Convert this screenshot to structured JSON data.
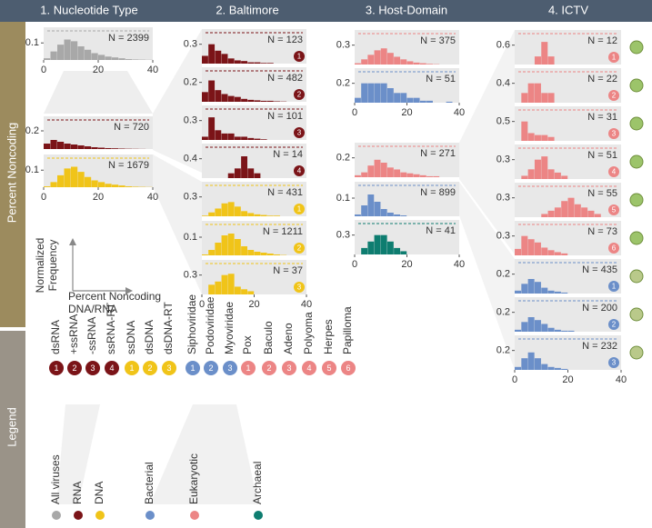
{
  "header": {
    "titles": [
      "1. Nucleotide Type",
      "2. Baltimore",
      "3. Host-Domain",
      "4. ICTV"
    ]
  },
  "side_labels": [
    "Percent Noncoding",
    "Legend"
  ],
  "axes_note": {
    "y": [
      "Normalized",
      "Frequency"
    ],
    "x": [
      "Percent Noncoding",
      "DNA/RNA"
    ]
  },
  "histogram_bins": [
    0,
    2.5,
    5,
    7.5,
    10,
    12.5,
    15,
    17.5,
    20,
    22.5,
    25,
    27.5,
    30,
    32.5,
    35,
    37.5,
    40
  ],
  "xlim": [
    0,
    40
  ],
  "xticks": [
    0,
    20,
    40
  ],
  "panels": [
    {
      "n_label": "N = 2399",
      "color": "#a8a8a8",
      "ylim": [
        0,
        0.16
      ],
      "ytick": 0.1,
      "xaxis": true,
      "values": [
        0.01,
        0.05,
        0.09,
        0.12,
        0.11,
        0.08,
        0.06,
        0.04,
        0.03,
        0.02,
        0.015,
        0.01,
        0.005,
        0.003,
        0.002,
        0.001
      ]
    },
    {
      "n_label": "N = 720",
      "color": "#7b1418",
      "ylim": [
        0,
        0.3
      ],
      "ytick": 0.2,
      "xaxis": false,
      "values": [
        0.06,
        0.1,
        0.08,
        0.06,
        0.05,
        0.04,
        0.03,
        0.02,
        0.015,
        0.01,
        0.008,
        0.005,
        0.003,
        0.002,
        0.001,
        0
      ]
    },
    {
      "n_label": "N = 1679",
      "color": "#f0c419",
      "ylim": [
        0,
        0.16
      ],
      "ytick": 0.1,
      "xaxis": true,
      "values": [
        0.005,
        0.03,
        0.07,
        0.11,
        0.12,
        0.09,
        0.06,
        0.04,
        0.03,
        0.02,
        0.015,
        0.01,
        0.005,
        0.003,
        0.002,
        0.001
      ]
    },
    {
      "n_label": "N = 123",
      "badge": "1",
      "color": "#7b1418",
      "ylim": [
        0,
        0.45
      ],
      "ytick": 0.3,
      "xaxis": false,
      "values": [
        0.12,
        0.3,
        0.2,
        0.15,
        0.08,
        0.05,
        0.04,
        0.02,
        0.02,
        0.01,
        0.01,
        0,
        0,
        0,
        0,
        0
      ]
    },
    {
      "n_label": "N = 482",
      "badge": "2",
      "color": "#7b1418",
      "ylim": [
        0,
        0.3
      ],
      "ytick": 0.2,
      "xaxis": false,
      "values": [
        0.1,
        0.22,
        0.12,
        0.08,
        0.06,
        0.05,
        0.03,
        0.02,
        0.015,
        0.01,
        0.01,
        0.005,
        0.003,
        0,
        0,
        0
      ]
    },
    {
      "n_label": "N = 101",
      "badge": "3",
      "color": "#7b1418",
      "ylim": [
        0,
        0.45
      ],
      "ytick": 0.3,
      "xaxis": false,
      "values": [
        0.05,
        0.35,
        0.15,
        0.1,
        0.1,
        0.05,
        0.05,
        0.03,
        0.02,
        0.01,
        0,
        0,
        0,
        0,
        0,
        0
      ]
    },
    {
      "n_label": "N = 14",
      "badge": "4",
      "color": "#7b1418",
      "ylim": [
        0,
        0.6
      ],
      "ytick": 0.4,
      "xaxis": false,
      "values": [
        0,
        0,
        0,
        0,
        0.1,
        0.2,
        0.45,
        0.2,
        0.1,
        0,
        0,
        0,
        0,
        0,
        0,
        0
      ]
    },
    {
      "n_label": "N = 431",
      "badge": "1",
      "color": "#f0c419",
      "ylim": [
        0,
        0.45
      ],
      "ytick": 0.3,
      "xaxis": false,
      "values": [
        0.01,
        0.06,
        0.12,
        0.2,
        0.22,
        0.15,
        0.08,
        0.05,
        0.03,
        0.02,
        0.01,
        0.01,
        0,
        0,
        0,
        0
      ]
    },
    {
      "n_label": "N = 1211",
      "badge": "2",
      "color": "#f0c419",
      "ylim": [
        0,
        0.16
      ],
      "ytick": 0.1,
      "xaxis": false,
      "values": [
        0.005,
        0.03,
        0.07,
        0.11,
        0.12,
        0.09,
        0.05,
        0.03,
        0.02,
        0.015,
        0.01,
        0.005,
        0.002,
        0,
        0,
        0
      ]
    },
    {
      "n_label": "N = 37",
      "badge": "3",
      "color": "#f0c419",
      "ylim": [
        0,
        0.45
      ],
      "ytick": 0.3,
      "xaxis": true,
      "values": [
        0,
        0.15,
        0.2,
        0.3,
        0.32,
        0.12,
        0.08,
        0.05,
        0,
        0,
        0,
        0,
        0,
        0,
        0,
        0
      ]
    },
    {
      "n_label": "N = 375",
      "color": "#ec8585",
      "ylim": [
        0,
        0.45
      ],
      "ytick": 0.3,
      "xaxis": false,
      "values": [
        0.02,
        0.08,
        0.15,
        0.22,
        0.25,
        0.18,
        0.12,
        0.08,
        0.05,
        0.03,
        0.02,
        0.01,
        0.005,
        0,
        0,
        0
      ]
    },
    {
      "n_label": "N = 51",
      "color": "#6b8fc9",
      "ylim": [
        0,
        0.3
      ],
      "ytick": 0.2,
      "xaxis": true,
      "values": [
        0.05,
        0.2,
        0.2,
        0.2,
        0.2,
        0.15,
        0.1,
        0.1,
        0.05,
        0.05,
        0.02,
        0.02,
        0,
        0,
        0.01,
        0
      ]
    },
    {
      "n_label": "N = 271",
      "color": "#ec8585",
      "ylim": [
        0,
        0.3
      ],
      "ytick": 0.2,
      "xaxis": false,
      "values": [
        0.02,
        0.05,
        0.12,
        0.18,
        0.15,
        0.1,
        0.08,
        0.05,
        0.04,
        0.03,
        0.02,
        0.01,
        0.01,
        0,
        0,
        0
      ]
    },
    {
      "n_label": "N = 899",
      "color": "#6b8fc9",
      "ylim": [
        0,
        0.16
      ],
      "ytick": 0.1,
      "xaxis": false,
      "values": [
        0.01,
        0.06,
        0.12,
        0.08,
        0.04,
        0.02,
        0.01,
        0.005,
        0,
        0,
        0,
        0,
        0,
        0,
        0,
        0
      ]
    },
    {
      "n_label": "N = 41",
      "color": "#0e7d70",
      "ylim": [
        0,
        0.45
      ],
      "ytick": 0.3,
      "xaxis": true,
      "values": [
        0,
        0.1,
        0.2,
        0.3,
        0.3,
        0.2,
        0.1,
        0.05,
        0,
        0,
        0,
        0,
        0,
        0,
        0,
        0
      ]
    },
    {
      "n_label": "N = 12",
      "badge": "1",
      "color": "#ec8585",
      "ylim": [
        0,
        0.9
      ],
      "ytick": 0.6,
      "xaxis": false,
      "values": [
        0,
        0,
        0,
        0.25,
        0.7,
        0.25,
        0,
        0,
        0,
        0,
        0,
        0,
        0,
        0,
        0,
        0
      ]
    },
    {
      "n_label": "N = 22",
      "badge": "2",
      "color": "#ec8585",
      "ylim": [
        0,
        0.6
      ],
      "ytick": 0.4,
      "xaxis": false,
      "values": [
        0,
        0.2,
        0.4,
        0.4,
        0.2,
        0.2,
        0,
        0,
        0,
        0,
        0,
        0,
        0,
        0,
        0,
        0
      ]
    },
    {
      "n_label": "N = 31",
      "badge": "3",
      "color": "#ec8585",
      "ylim": [
        0,
        0.75
      ],
      "ytick": 0.5,
      "xaxis": false,
      "values": [
        0,
        0.5,
        0.2,
        0.15,
        0.15,
        0.1,
        0,
        0,
        0,
        0,
        0,
        0,
        0,
        0,
        0,
        0
      ]
    },
    {
      "n_label": "N = 51",
      "badge": "4",
      "color": "#ec8585",
      "ylim": [
        0,
        0.45
      ],
      "ytick": 0.3,
      "xaxis": false,
      "values": [
        0,
        0.05,
        0.15,
        0.3,
        0.35,
        0.15,
        0.1,
        0.05,
        0,
        0,
        0,
        0,
        0,
        0,
        0,
        0
      ]
    },
    {
      "n_label": "N = 55",
      "badge": "5",
      "color": "#ec8585",
      "ylim": [
        0,
        0.45
      ],
      "ytick": 0.3,
      "xaxis": false,
      "values": [
        0,
        0,
        0,
        0,
        0.05,
        0.1,
        0.15,
        0.25,
        0.3,
        0.2,
        0.15,
        0.1,
        0.05,
        0,
        0,
        0
      ]
    },
    {
      "n_label": "N = 73",
      "badge": "6",
      "color": "#ec8585",
      "ylim": [
        0,
        0.45
      ],
      "ytick": 0.3,
      "xaxis": false,
      "values": [
        0.1,
        0.3,
        0.25,
        0.2,
        0.12,
        0.08,
        0.05,
        0.03,
        0,
        0,
        0,
        0,
        0,
        0,
        0,
        0
      ]
    },
    {
      "n_label": "N = 435",
      "badge": "1",
      "color": "#6b8fc9",
      "ylim": [
        0,
        0.3
      ],
      "ytick": 0.2,
      "xaxis": false,
      "values": [
        0.03,
        0.1,
        0.15,
        0.12,
        0.06,
        0.03,
        0.02,
        0.01,
        0,
        0,
        0,
        0,
        0,
        0,
        0,
        0
      ]
    },
    {
      "n_label": "N = 200",
      "badge": "2",
      "color": "#6b8fc9",
      "ylim": [
        0,
        0.3
      ],
      "ytick": 0.2,
      "xaxis": false,
      "values": [
        0.02,
        0.1,
        0.15,
        0.12,
        0.08,
        0.04,
        0.02,
        0.01,
        0.01,
        0,
        0,
        0,
        0,
        0,
        0,
        0
      ]
    },
    {
      "n_label": "N = 232",
      "badge": "3",
      "color": "#6b8fc9",
      "ylim": [
        0,
        0.3
      ],
      "ytick": 0.2,
      "xaxis": true,
      "values": [
        0.03,
        0.12,
        0.18,
        0.12,
        0.06,
        0.03,
        0.02,
        0.01,
        0,
        0,
        0,
        0,
        0,
        0,
        0,
        0
      ]
    }
  ],
  "legend": {
    "groups": [
      {
        "color": "#7b1418",
        "items": [
          {
            "label": "dsRNA",
            "badge": "1"
          },
          {
            "label": "+ssRNA",
            "badge": "2"
          },
          {
            "label": "-ssRNA",
            "badge": "3"
          },
          {
            "label": "ssRNA-RT",
            "badge": "4"
          }
        ]
      },
      {
        "color": "#f0c419",
        "items": [
          {
            "label": "ssDNA",
            "badge": "1"
          },
          {
            "label": "dsDNA",
            "badge": "2"
          },
          {
            "label": "dsDNA-RT",
            "badge": "3"
          }
        ]
      },
      {
        "color": "#6b8fc9",
        "items": [
          {
            "label": "Siphoviridae",
            "badge": "1"
          },
          {
            "label": "Podoviridae",
            "badge": "2"
          },
          {
            "label": "Myoviridae",
            "badge": "3"
          }
        ]
      },
      {
        "color": "#ec8585",
        "items": [
          {
            "label": "Pox",
            "badge": "1"
          },
          {
            "label": "Baculo",
            "badge": "2"
          },
          {
            "label": "Adeno",
            "badge": "3"
          },
          {
            "label": "Polyoma",
            "badge": "4"
          },
          {
            "label": "Herpes",
            "badge": "5"
          },
          {
            "label": "Papilloma",
            "badge": "6"
          }
        ]
      }
    ],
    "categories": [
      {
        "label": "All viruses",
        "color": "#a8a8a8"
      },
      {
        "label": "RNA",
        "color": "#7b1418"
      },
      {
        "label": "DNA",
        "color": "#f0c419"
      },
      {
        "label": "Bacterial",
        "color": "#6b8fc9"
      },
      {
        "label": "Eukaryotic",
        "color": "#ec8585"
      },
      {
        "label": "Archaeal",
        "color": "#0e7d70"
      }
    ]
  }
}
